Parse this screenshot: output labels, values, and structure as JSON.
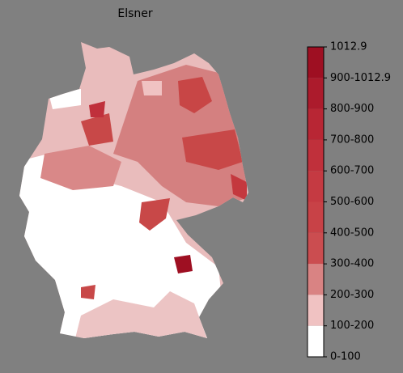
{
  "title": "Elsner",
  "colorbar": {
    "labels": [
      "1012.9",
      "900-1012.9",
      "800-900",
      "700-800",
      "600-700",
      "500-600",
      "400-500",
      "300-400",
      "200-300",
      "100-200",
      "0-100"
    ],
    "colors": [
      "#9e0f22",
      "#ac1b2c",
      "#b82634",
      "#c0303b",
      "#c53a42",
      "#c84247",
      "#cb4d50",
      "#d98383",
      "#f0c2c2",
      "#ffffff"
    ]
  }
}
